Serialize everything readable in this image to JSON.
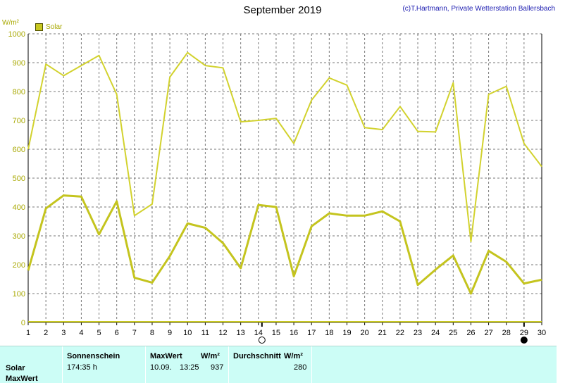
{
  "header": {
    "title": "September 2019",
    "copyright": "(c)T.Hartmann, Private Wetterstation Ballersbach"
  },
  "chart_data": {
    "type": "line",
    "title": "September 2019",
    "ylabel": "W/m²",
    "ylim": [
      0,
      1000
    ],
    "yticks": [
      0,
      100,
      200,
      300,
      400,
      500,
      600,
      700,
      800,
      900,
      1000
    ],
    "xlim": [
      1,
      30
    ],
    "x": [
      1,
      2,
      3,
      4,
      5,
      6,
      7,
      8,
      9,
      10,
      11,
      12,
      13,
      14,
      15,
      16,
      17,
      18,
      19,
      20,
      21,
      22,
      23,
      24,
      25,
      26,
      27,
      28,
      29,
      30
    ],
    "grid": true,
    "legend_position": "top-left",
    "series": [
      {
        "name": "Solar",
        "role": "max",
        "color": "#d2d22e",
        "values": [
          600,
          895,
          855,
          890,
          925,
          790,
          370,
          410,
          850,
          935,
          890,
          882,
          695,
          700,
          707,
          620,
          770,
          847,
          822,
          675,
          668,
          748,
          662,
          660,
          830,
          280,
          790,
          818,
          620,
          540
        ]
      },
      {
        "name": "Solar",
        "role": "average",
        "color": "#c4c41e",
        "values": [
          180,
          395,
          440,
          436,
          305,
          420,
          155,
          138,
          230,
          343,
          328,
          275,
          188,
          407,
          400,
          160,
          333,
          378,
          370,
          370,
          385,
          350,
          130,
          183,
          232,
          100,
          248,
          210,
          135,
          148
        ]
      }
    ],
    "markers": [
      {
        "x": 14.2,
        "symbol": "new-moon-outline"
      },
      {
        "x": 29,
        "symbol": "full-moon-filled"
      }
    ]
  },
  "stats_table": {
    "row_label_1": "Solar",
    "row_label_2": "MaxWert",
    "sonnenschein_header": "Sonnenschein",
    "sonnenschein_value": "174:35 h",
    "maxwert_header": "MaxWert",
    "maxwert_unit": "W/m²",
    "maxwert_date": "10.09.",
    "maxwert_time": "13:25",
    "maxwert_value": "937",
    "durchschnitt_header": "Durchschnitt",
    "durchschnitt_unit": "W/m²",
    "durchschnitt_value": "280"
  }
}
